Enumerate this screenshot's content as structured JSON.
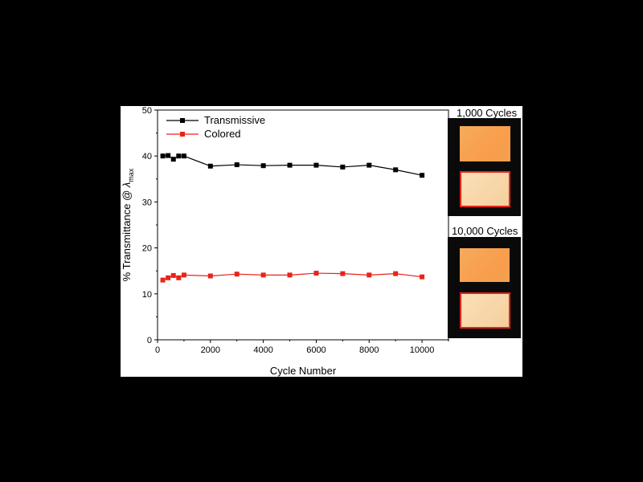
{
  "chart_data": {
    "type": "line",
    "ylabel_main": "% Transmittance @ ",
    "ylabel_lambda": "λ",
    "ylabel_sub": "max",
    "xlabel": "Cycle Number",
    "xlim": [
      0,
      11000
    ],
    "ylim": [
      0,
      50
    ],
    "xticks": [
      "0",
      "2000",
      "4000",
      "6000",
      "8000",
      "10000"
    ],
    "yticks": [
      "0",
      "10",
      "20",
      "30",
      "40",
      "50"
    ],
    "legend_position": "top-left",
    "series": [
      {
        "name": "Transmissive",
        "color": "#000000",
        "x": [
          200,
          400,
          600,
          800,
          1000,
          2000,
          3000,
          4000,
          5000,
          6000,
          7000,
          8000,
          9000,
          10000
        ],
        "y": [
          40.0,
          40.1,
          39.3,
          40.0,
          40.0,
          37.8,
          38.1,
          37.9,
          38.0,
          38.0,
          37.6,
          38.0,
          37.0,
          35.8
        ]
      },
      {
        "name": "Colored",
        "color": "#e8241a",
        "x": [
          200,
          400,
          600,
          800,
          1000,
          2000,
          3000,
          4000,
          5000,
          6000,
          7000,
          8000,
          9000,
          10000
        ],
        "y": [
          13.0,
          13.5,
          14.0,
          13.5,
          14.1,
          13.9,
          14.3,
          14.1,
          14.1,
          14.5,
          14.4,
          14.1,
          14.4,
          13.7
        ]
      }
    ]
  },
  "insets": {
    "top_label": "1,000 Cycles",
    "bottom_label": "10,000 Cycles"
  }
}
